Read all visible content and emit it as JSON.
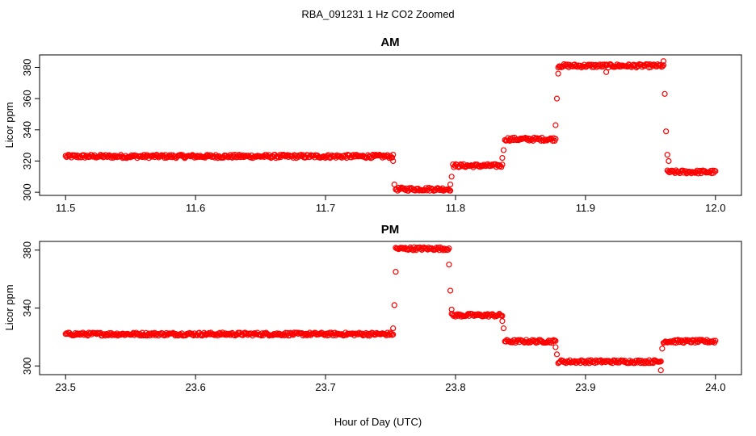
{
  "figure": {
    "title": "RBA_091231  1 Hz CO2 Zoomed",
    "xlabel": "Hour of Day (UTC)"
  },
  "colors": {
    "points": "#ff0000",
    "axis": "#000000"
  },
  "chart_data": [
    {
      "type": "scatter",
      "title": "AM",
      "ylabel": "Licor ppm",
      "xlim": [
        11.48,
        12.02
      ],
      "ylim": [
        298,
        388
      ],
      "xticks": [
        "11.5",
        "11.6",
        "11.7",
        "11.8",
        "11.9",
        "12.0"
      ],
      "xtick_values": [
        11.5,
        11.6,
        11.7,
        11.8,
        11.9,
        12.0
      ],
      "yticks": [
        "300",
        "320",
        "340",
        "360",
        "380"
      ],
      "ytick_values": [
        300,
        320,
        340,
        360,
        380
      ],
      "grid": false,
      "segments": [
        {
          "x": [
            11.5,
            11.752
          ],
          "y": 323
        },
        {
          "x": [
            11.754,
            11.796
          ],
          "y": 302
        },
        {
          "x": [
            11.798,
            11.836
          ],
          "y": 317
        },
        {
          "x": [
            11.838,
            11.877
          ],
          "y": 334
        },
        {
          "x": [
            11.879,
            11.96
          ],
          "y": 381
        },
        {
          "x": [
            11.963,
            12.0
          ],
          "y": 313
        }
      ],
      "transitions": [
        {
          "x": 11.752,
          "y": 320
        },
        {
          "x": 11.753,
          "y": 305
        },
        {
          "x": 11.796,
          "y": 305
        },
        {
          "x": 11.797,
          "y": 310
        },
        {
          "x": 11.836,
          "y": 322
        },
        {
          "x": 11.837,
          "y": 327
        },
        {
          "x": 11.877,
          "y": 343
        },
        {
          "x": 11.878,
          "y": 360
        },
        {
          "x": 11.879,
          "y": 376
        },
        {
          "x": 11.916,
          "y": 377
        },
        {
          "x": 11.96,
          "y": 384
        },
        {
          "x": 11.961,
          "y": 363
        },
        {
          "x": 11.962,
          "y": 339
        },
        {
          "x": 11.963,
          "y": 324
        },
        {
          "x": 11.964,
          "y": 320
        }
      ]
    },
    {
      "type": "scatter",
      "title": "PM",
      "ylabel": "Licor ppm",
      "xlim": [
        23.48,
        24.02
      ],
      "ylim": [
        294,
        386
      ],
      "xticks": [
        "23.5",
        "23.6",
        "23.7",
        "23.8",
        "23.9",
        "24.0"
      ],
      "xtick_values": [
        23.5,
        23.6,
        23.7,
        23.8,
        23.9,
        24.0
      ],
      "yticks": [
        "300",
        "340",
        "380"
      ],
      "ytick_values": [
        300,
        340,
        380
      ],
      "grid": false,
      "segments": [
        {
          "x": [
            23.5,
            23.752
          ],
          "y": 322
        },
        {
          "x": [
            23.754,
            23.795
          ],
          "y": 381
        },
        {
          "x": [
            23.797,
            23.836
          ],
          "y": 335
        },
        {
          "x": [
            23.838,
            23.877
          ],
          "y": 317
        },
        {
          "x": [
            23.879,
            23.958
          ],
          "y": 303
        },
        {
          "x": [
            23.96,
            24.0
          ],
          "y": 317
        }
      ],
      "transitions": [
        {
          "x": 23.752,
          "y": 326
        },
        {
          "x": 23.753,
          "y": 342
        },
        {
          "x": 23.754,
          "y": 365
        },
        {
          "x": 23.795,
          "y": 370
        },
        {
          "x": 23.796,
          "y": 352
        },
        {
          "x": 23.797,
          "y": 339
        },
        {
          "x": 23.836,
          "y": 331
        },
        {
          "x": 23.837,
          "y": 326
        },
        {
          "x": 23.877,
          "y": 313
        },
        {
          "x": 23.878,
          "y": 308
        },
        {
          "x": 23.958,
          "y": 297
        },
        {
          "x": 23.959,
          "y": 312
        }
      ]
    }
  ]
}
